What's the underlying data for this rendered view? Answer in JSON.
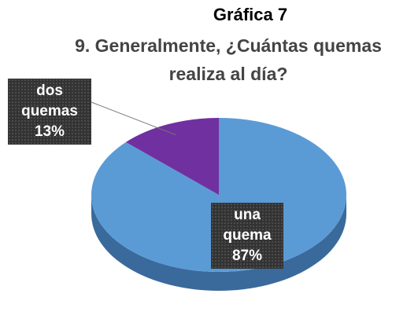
{
  "chart_data": {
    "type": "pie",
    "title": "Gráfica 7",
    "subtitle": "9. Generalmente, ¿Cuántas quemas realiza al día?",
    "categories": [
      "una quema",
      "dos quemas"
    ],
    "values": [
      87,
      13
    ],
    "value_labels": [
      "87%",
      "13%"
    ],
    "colors": [
      "#5b9bd5",
      "#7030a0"
    ]
  }
}
